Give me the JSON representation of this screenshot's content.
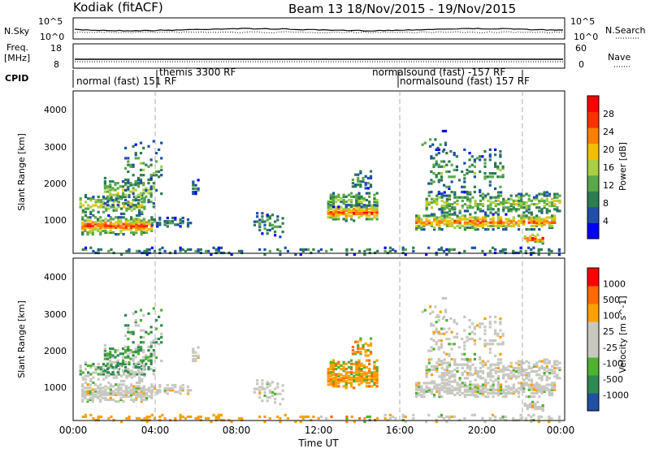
{
  "header": {
    "station": "Kodiak (fitACF)",
    "beam_date": "Beam 13  18/Nov/2015 - 19/Nov/2015"
  },
  "left_labels": {
    "nsky": "N.Sky",
    "freq_line1": "Freq.",
    "freq_line2": "[MHz]",
    "cpid": "CPID"
  },
  "right_labels": {
    "nsearch": "N.Search",
    "nave": "Nave"
  },
  "cpid_labels": [
    "normal (fast) 151 RF",
    "themis 3300 RF",
    "normalsound (fast) -157 RF",
    "normalsound (fast) 157 RF"
  ],
  "colors": {
    "power": [
      "#0000ff",
      "#1f4fa8",
      "#2e7d4f",
      "#5aa84a",
      "#a8d040",
      "#f0c000",
      "#ff8000",
      "#ff3000",
      "#ff0000"
    ],
    "velocity": [
      "#ff0000",
      "#ff6a00",
      "#ffa000",
      "#c8c8c0",
      "#c8c8c0",
      "#50b030",
      "#2e8a50",
      "#2050a0"
    ]
  },
  "chart_data": [
    {
      "type": "line",
      "title": "N.Sky / N.Search",
      "y_ticks_left": [
        "10^5",
        "10^0"
      ],
      "y_ticks_right": [
        "10^5",
        "10^0"
      ]
    },
    {
      "type": "line",
      "title": "Freq. / Nave",
      "y_ticks_left": [
        "18",
        "8"
      ],
      "y_ticks_right": [
        "60",
        "0"
      ]
    },
    {
      "type": "heatmap",
      "ylabel": "Slant Range [km]",
      "y_ticks": [
        "1000",
        "2000",
        "3000",
        "4000"
      ],
      "ylim": [
        180,
        4500
      ],
      "colorbar_label": "Power [dB]",
      "colorbar_ticks": [
        "4",
        "8",
        "12",
        "16",
        "20",
        "24",
        "28"
      ]
    },
    {
      "type": "heatmap",
      "ylabel": "Slant Range [km]",
      "y_ticks": [
        "1000",
        "2000",
        "3000",
        "4000"
      ],
      "ylim": [
        180,
        4500
      ],
      "colorbar_label": "Velocity [m s^-1]",
      "colorbar_ticks": [
        "1000",
        "500",
        "100",
        "25",
        "-25",
        "-100",
        "-500",
        "-1000"
      ],
      "xlabel": "Time UT",
      "x_ticks": [
        "00:00",
        "04:00",
        "08:00",
        "12:00",
        "16:00",
        "20:00",
        "00:00"
      ],
      "xlim_hours": [
        0,
        24
      ]
    }
  ]
}
